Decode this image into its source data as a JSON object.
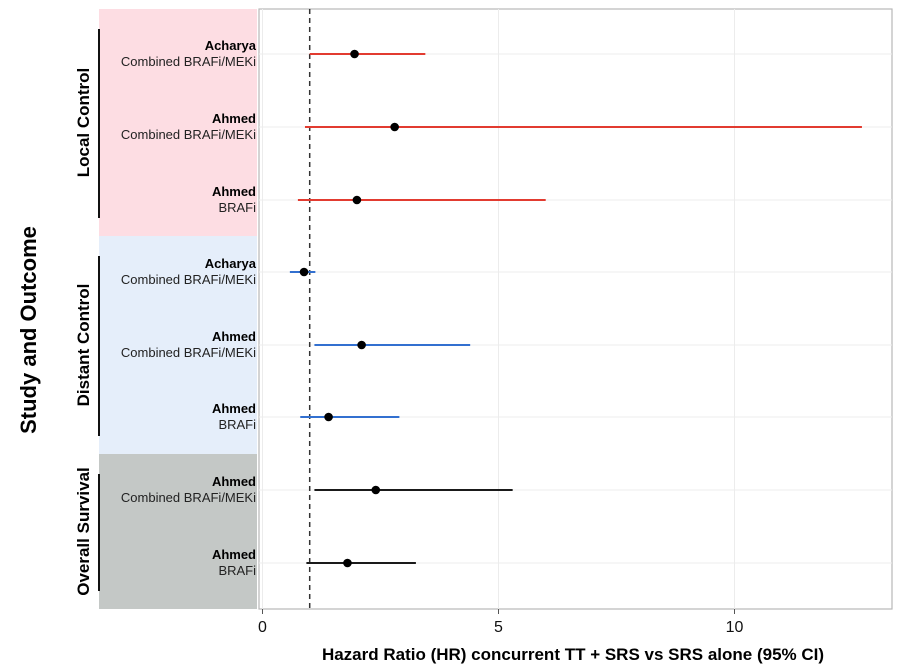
{
  "chart_data": {
    "type": "forest",
    "xlabel": "Hazard Ratio (HR) concurrent TT + SRS vs SRS alone (95% CI)",
    "ylabel": "Study and Outcome",
    "xlim": [
      -0.1,
      13.3
    ],
    "xticks": [
      0,
      5,
      10
    ],
    "reference_line": 1,
    "groups": [
      {
        "name": "Local Control",
        "band_color": "#fddde3",
        "line_color": "#e23b30",
        "rows": [
          {
            "study": "Acharya",
            "subgroup": "Combined BRAFi/MEKi",
            "hr": 1.95,
            "ci": [
              1.0,
              3.45
            ]
          },
          {
            "study": "Ahmed",
            "subgroup": "Combined BRAFi/MEKi",
            "hr": 2.8,
            "ci": [
              0.9,
              12.7
            ]
          },
          {
            "study": "Ahmed",
            "subgroup": "BRAFi",
            "hr": 2.0,
            "ci": [
              0.75,
              6.0
            ]
          }
        ]
      },
      {
        "name": "Distant Control",
        "band_color": "#e5eefa",
        "line_color": "#3270d0",
        "rows": [
          {
            "study": "Acharya",
            "subgroup": "Combined BRAFi/MEKi",
            "hr": 0.88,
            "ci": [
              0.58,
              1.12
            ]
          },
          {
            "study": "Ahmed",
            "subgroup": "Combined BRAFi/MEKi",
            "hr": 2.1,
            "ci": [
              1.1,
              4.4
            ]
          },
          {
            "study": "Ahmed",
            "subgroup": "BRAFi",
            "hr": 1.4,
            "ci": [
              0.8,
              2.9
            ]
          }
        ]
      },
      {
        "name": "Overall Survival",
        "band_color": "#c4c8c6",
        "line_color": "#1a1a1a",
        "rows": [
          {
            "study": "Ahmed",
            "subgroup": "Combined BRAFi/MEKi",
            "hr": 2.4,
            "ci": [
              1.1,
              5.3
            ]
          },
          {
            "study": "Ahmed",
            "subgroup": "BRAFi",
            "hr": 1.8,
            "ci": [
              0.93,
              3.25
            ]
          }
        ]
      }
    ]
  }
}
